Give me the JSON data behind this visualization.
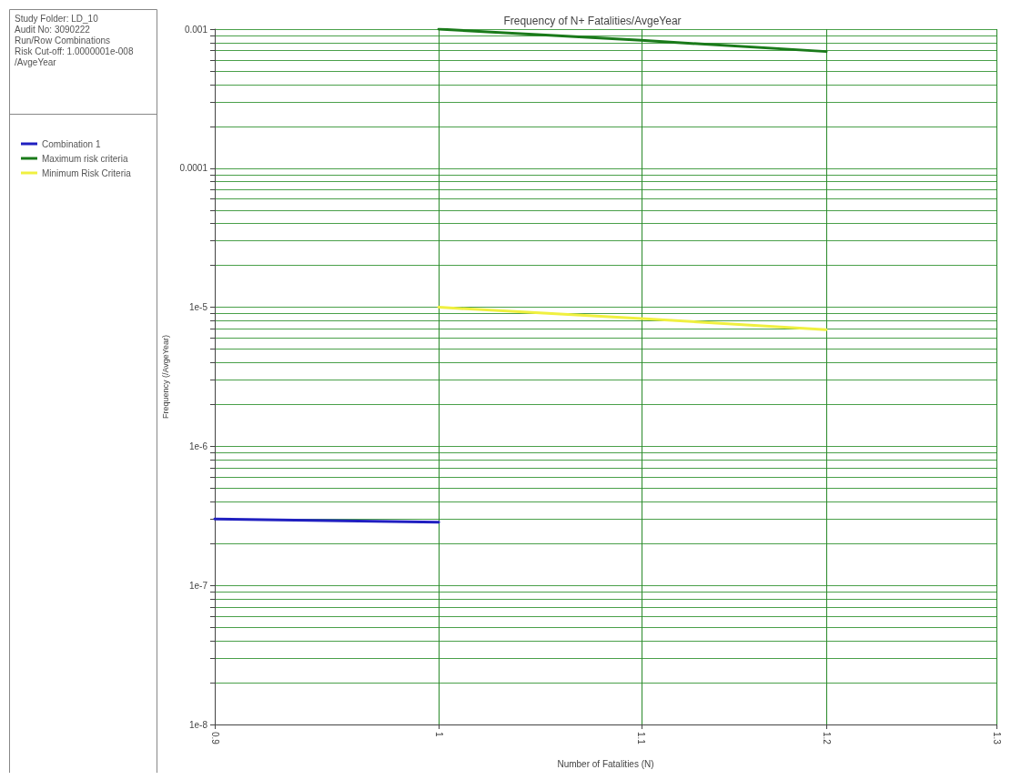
{
  "chart_data": {
    "type": "line",
    "title": "Frequency of N+ Fatalities/AvgeYear",
    "xlabel": "Number of Fatalities (N)",
    "ylabel": "Frequency (/AvgeYear)",
    "annotations": [
      "Study Folder: LD_10",
      "Audit No: 3090222",
      "Run/Row Combinations",
      "Risk Cut-off: 1.0000001e-008",
      "/AvgeYear"
    ],
    "log": "xy",
    "grid": true,
    "legend": "left",
    "marker": "none",
    "line_style": "solid",
    "xlim": [
      0.9,
      1.3
    ],
    "xticks": [
      0.9,
      1,
      1.1,
      1.2,
      1.3
    ],
    "ylim": [
      1e-08,
      0.001
    ],
    "yticks": [
      {
        "value": 1e-08,
        "label": "1e-8"
      },
      {
        "value": 2e-08,
        "label": null
      },
      {
        "value": 3e-08,
        "label": null
      },
      {
        "value": 4e-08,
        "label": null
      },
      {
        "value": 5e-08,
        "label": null
      },
      {
        "value": 6e-08,
        "label": null
      },
      {
        "value": 7e-08,
        "label": null
      },
      {
        "value": 8e-08,
        "label": null
      },
      {
        "value": 9e-08,
        "label": null
      },
      {
        "value": 1e-07,
        "label": "1e-7"
      },
      {
        "value": 2e-07,
        "label": null
      },
      {
        "value": 3e-07,
        "label": null
      },
      {
        "value": 4e-07,
        "label": null
      },
      {
        "value": 5e-07,
        "label": null
      },
      {
        "value": 6e-07,
        "label": null
      },
      {
        "value": 7e-07,
        "label": null
      },
      {
        "value": 8e-07,
        "label": null
      },
      {
        "value": 9e-07,
        "label": null
      },
      {
        "value": 1e-06,
        "label": "1e-6"
      },
      {
        "value": 2e-06,
        "label": null
      },
      {
        "value": 3e-06,
        "label": null
      },
      {
        "value": 4e-06,
        "label": null
      },
      {
        "value": 5e-06,
        "label": null
      },
      {
        "value": 6e-06,
        "label": null
      },
      {
        "value": 7e-06,
        "label": null
      },
      {
        "value": 8e-06,
        "label": null
      },
      {
        "value": 9e-06,
        "label": null
      },
      {
        "value": 1e-05,
        "label": "1e-5"
      },
      {
        "value": 2e-05,
        "label": null
      },
      {
        "value": 3e-05,
        "label": null
      },
      {
        "value": 4e-05,
        "label": null
      },
      {
        "value": 5e-05,
        "label": null
      },
      {
        "value": 6e-05,
        "label": null
      },
      {
        "value": 7e-05,
        "label": null
      },
      {
        "value": 8e-05,
        "label": null
      },
      {
        "value": 9e-05,
        "label": null
      },
      {
        "value": 0.0001,
        "label": "0.0001"
      },
      {
        "value": 0.0002,
        "label": null
      },
      {
        "value": 0.0003,
        "label": null
      },
      {
        "value": 0.0004,
        "label": null
      },
      {
        "value": 0.0005,
        "label": null
      },
      {
        "value": 0.0006,
        "label": null
      },
      {
        "value": 0.0007,
        "label": null
      },
      {
        "value": 0.0008,
        "label": null
      },
      {
        "value": 0.0009,
        "label": null
      },
      {
        "value": 0.001,
        "label": "0.001"
      }
    ],
    "series": [
      {
        "name": "Combination 1",
        "color": "#2020c0",
        "x": [
          0.9,
          1
        ],
        "values": [
          3e-07,
          2.85e-07
        ]
      },
      {
        "name": "Maximum risk criteria",
        "color": "#1a7a1a",
        "x": [
          1,
          1.1,
          1.2
        ],
        "values": [
          0.001,
          0.00083,
          0.00069
        ]
      },
      {
        "name": "Minimum Risk Criteria",
        "color": "#f0f040",
        "x": [
          1,
          1.1,
          1.2
        ],
        "values": [
          1e-05,
          8.3e-06,
          6.9e-06
        ]
      }
    ]
  }
}
